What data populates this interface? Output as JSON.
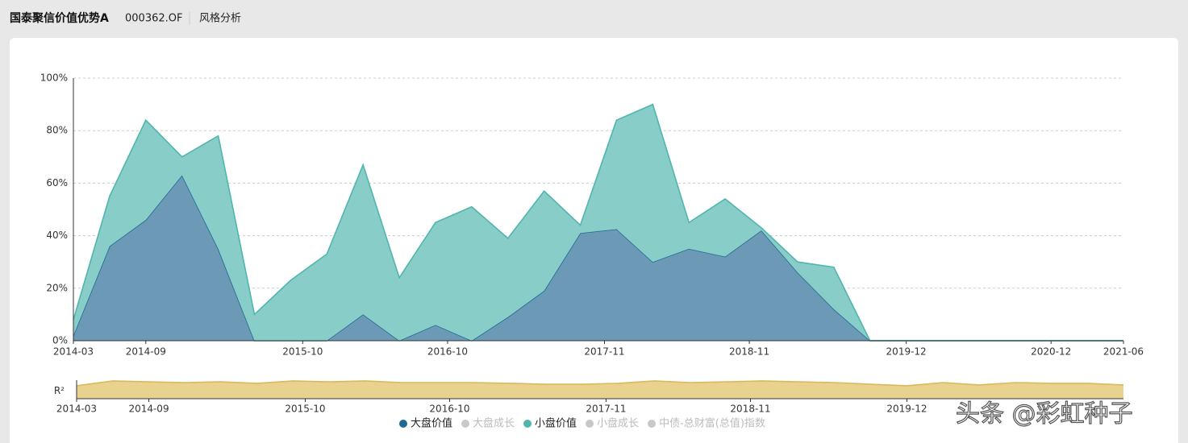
{
  "header": {
    "fund_name": "国泰聚信价值优势A",
    "code": "000362.OF",
    "tab": "风格分析"
  },
  "watermark": "头条 @彩虹种子",
  "chart_data": [
    {
      "type": "area",
      "stacked": true,
      "grid": true,
      "x": [
        "2014-03",
        "2014-06",
        "2014-09",
        "2014-12",
        "2015-03",
        "2015-06",
        "2015-09",
        "2015-12",
        "2016-03",
        "2016-06",
        "2016-09",
        "2016-12",
        "2017-03",
        "2017-06",
        "2017-09",
        "2017-12",
        "2018-03",
        "2018-06",
        "2018-09",
        "2018-12",
        "2019-03",
        "2019-06",
        "2019-09",
        "2019-12",
        "2020-03",
        "2020-06",
        "2020-09",
        "2020-12",
        "2021-03",
        "2021-06"
      ],
      "xlim": [
        "2014-03",
        "2021-06"
      ],
      "xticks": [
        "2014-03",
        "2014-09",
        "2015-10",
        "2016-10",
        "2017-11",
        "2018-11",
        "2019-12",
        "2020-12",
        "2021-06"
      ],
      "ylim": [
        0,
        100
      ],
      "yticks": [
        {
          "value": 0,
          "label": "0%"
        },
        {
          "value": 20,
          "label": "20%"
        },
        {
          "value": 40,
          "label": "40%"
        },
        {
          "value": 60,
          "label": "60%"
        },
        {
          "value": 80,
          "label": "80%"
        },
        {
          "value": 100,
          "label": "100%"
        }
      ],
      "series": [
        {
          "name": "大盘价值",
          "color": "#1f6a93",
          "fill": "#6b99b6",
          "values": [
            2,
            36,
            46,
            63,
            35,
            0,
            0,
            0,
            10,
            0,
            6,
            0,
            9,
            19,
            41,
            42.5,
            30,
            35,
            32,
            42,
            26,
            12,
            0,
            0,
            0,
            0,
            0,
            0,
            0,
            0
          ]
        },
        {
          "name": "大盘成长",
          "color": "#c8c8c8",
          "visible": false
        },
        {
          "name": "小盘价值",
          "color": "#4fb6ae",
          "fill": "#89cdc8",
          "values": [
            6,
            19,
            38,
            7,
            43,
            10,
            23,
            33,
            57,
            24,
            39,
            51,
            30,
            38,
            3,
            41.5,
            60,
            10,
            22,
            1,
            4,
            16,
            0,
            0,
            0,
            0,
            0,
            0,
            0,
            0
          ]
        },
        {
          "name": "小盘成长",
          "color": "#c8c8c8",
          "visible": false
        },
        {
          "name": "中债-总财富(总值)指数",
          "color": "#c8c8c8",
          "visible": false
        }
      ]
    },
    {
      "type": "area",
      "y_label": "R²",
      "x": [
        "2014-03",
        "2014-06",
        "2014-09",
        "2014-12",
        "2015-03",
        "2015-06",
        "2015-09",
        "2015-12",
        "2016-03",
        "2016-06",
        "2016-09",
        "2016-12",
        "2017-03",
        "2017-06",
        "2017-09",
        "2017-12",
        "2018-03",
        "2018-06",
        "2018-09",
        "2018-12",
        "2019-03",
        "2019-06",
        "2019-09",
        "2019-12",
        "2020-03",
        "2020-06",
        "2020-09",
        "2020-12",
        "2021-03",
        "2021-06"
      ],
      "xlim": [
        "2014-03",
        "2021-06"
      ],
      "xticks": [
        "2014-03",
        "2014-09",
        "2015-10",
        "2016-10",
        "2017-11",
        "2018-11",
        "2019-12"
      ],
      "ylim": [
        0,
        1
      ],
      "series": [
        {
          "name": "R²",
          "color": "#d9b95c",
          "fill": "#e8d28e",
          "values": [
            0.7,
            0.96,
            0.91,
            0.87,
            0.91,
            0.83,
            0.96,
            0.91,
            0.96,
            0.87,
            0.87,
            0.87,
            0.83,
            0.78,
            0.78,
            0.83,
            0.96,
            0.87,
            0.91,
            0.96,
            0.91,
            0.87,
            0.78,
            0.7,
            0.87,
            0.74,
            0.87,
            0.83,
            0.83,
            0.74
          ]
        }
      ]
    }
  ]
}
